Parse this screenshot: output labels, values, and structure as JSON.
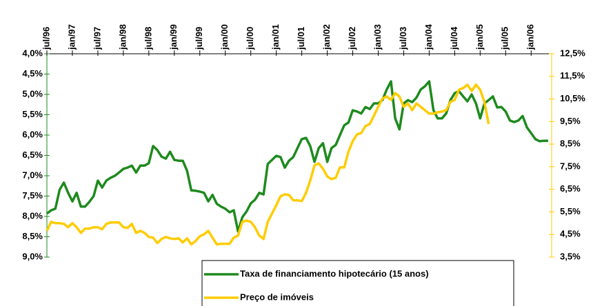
{
  "chart_data": {
    "type": "line",
    "categories": [
      "jul/96",
      null,
      null,
      null,
      null,
      null,
      "jan/97",
      null,
      null,
      null,
      null,
      null,
      "jul/97",
      null,
      null,
      null,
      null,
      null,
      "jan/98",
      null,
      null,
      null,
      null,
      null,
      "jul/98",
      null,
      null,
      null,
      null,
      null,
      "jan/99",
      null,
      null,
      null,
      null,
      null,
      "jul/99",
      null,
      null,
      null,
      null,
      null,
      "jan/00",
      null,
      null,
      null,
      null,
      null,
      "jul/00",
      null,
      null,
      null,
      null,
      null,
      "jan/01",
      null,
      null,
      null,
      null,
      null,
      "jul/01",
      null,
      null,
      null,
      null,
      null,
      "jan/02",
      null,
      null,
      null,
      null,
      null,
      "jul/02",
      null,
      null,
      null,
      null,
      null,
      "jan/03",
      null,
      null,
      null,
      null,
      null,
      "jul/03",
      null,
      null,
      null,
      null,
      null,
      "jan/04",
      null,
      null,
      null,
      null,
      null,
      "jul/04",
      null,
      null,
      null,
      null,
      null,
      "jan/05",
      null,
      null,
      null,
      null,
      null,
      "jul/05",
      null,
      null,
      null,
      null,
      null,
      "jan/06",
      null,
      null,
      null,
      null
    ],
    "series": [
      {
        "name": "Taxa de financiamento hipotecário (15 anos)",
        "color": "#1e8a1e",
        "axis": "y",
        "values": [
          7.93,
          7.85,
          7.81,
          7.34,
          7.17,
          7.42,
          7.63,
          7.42,
          7.76,
          7.76,
          7.64,
          7.5,
          7.12,
          7.29,
          7.12,
          7.05,
          7.0,
          6.92,
          6.83,
          6.8,
          6.75,
          6.92,
          6.75,
          6.75,
          6.69,
          6.27,
          6.37,
          6.53,
          6.58,
          6.41,
          6.61,
          6.63,
          6.63,
          6.88,
          7.36,
          7.37,
          7.39,
          7.42,
          7.63,
          7.47,
          7.69,
          7.76,
          7.81,
          7.9,
          7.85,
          8.37,
          8.02,
          7.88,
          7.68,
          7.59,
          7.42,
          7.46,
          6.71,
          6.61,
          6.51,
          6.54,
          6.8,
          6.63,
          6.54,
          6.32,
          6.1,
          6.07,
          6.27,
          6.66,
          6.32,
          6.2,
          6.66,
          6.32,
          6.24,
          6.0,
          5.76,
          5.69,
          5.39,
          5.42,
          5.47,
          5.31,
          5.36,
          5.22,
          5.22,
          5.14,
          4.88,
          4.68,
          5.59,
          5.86,
          5.22,
          5.14,
          5.19,
          5.08,
          4.88,
          4.8,
          4.68,
          5.39,
          5.59,
          5.59,
          5.47,
          5.14,
          4.97,
          4.92,
          5.05,
          5.17,
          5.0,
          5.22,
          5.59,
          5.22,
          5.14,
          5.05,
          5.32,
          5.31,
          5.42,
          5.64,
          5.68,
          5.64,
          5.53,
          5.81,
          5.95,
          6.1,
          6.15,
          6.14,
          6.14
        ]
      },
      {
        "name": "Preço de imóveis",
        "color": "#ffcc00",
        "axis": "y2",
        "values": [
          4.66,
          5.06,
          5.0,
          5.0,
          4.97,
          4.82,
          5.0,
          4.82,
          4.57,
          4.76,
          4.76,
          4.82,
          4.82,
          4.73,
          4.97,
          5.03,
          5.03,
          5.03,
          4.82,
          4.79,
          4.97,
          4.57,
          4.66,
          4.57,
          4.39,
          4.36,
          4.12,
          4.3,
          4.39,
          4.33,
          4.3,
          4.33,
          4.15,
          4.33,
          4.06,
          4.21,
          4.42,
          4.51,
          4.66,
          4.36,
          4.06,
          4.09,
          4.09,
          4.09,
          4.36,
          4.45,
          5.06,
          5.12,
          5.06,
          4.82,
          4.45,
          4.3,
          5.06,
          5.43,
          5.79,
          6.19,
          6.28,
          6.25,
          6.01,
          6.01,
          5.98,
          6.34,
          6.89,
          7.56,
          7.65,
          7.41,
          7.07,
          6.95,
          7.01,
          7.47,
          7.47,
          8.17,
          8.63,
          8.93,
          8.99,
          9.3,
          9.39,
          9.76,
          10.15,
          10.52,
          10.61,
          10.46,
          10.76,
          10.61,
          10.15,
          10.3,
          10.0,
          10.3,
          10.15,
          10.0,
          9.85,
          9.85,
          9.91,
          9.94,
          10.0,
          10.37,
          10.46,
          10.91,
          10.98,
          11.13,
          10.85,
          11.13,
          10.91,
          10.37,
          9.39,
          null,
          null,
          null,
          null,
          null,
          null,
          null,
          null,
          null,
          null,
          null,
          null,
          null,
          null
        ]
      }
    ],
    "ylim": [
      4,
      9
    ],
    "y_reversed": true,
    "yticks": [
      {
        "value": 4,
        "label": "4,0%"
      },
      {
        "value": 4.5,
        "label": "4,5%"
      },
      {
        "value": 5,
        "label": "5,0%"
      },
      {
        "value": 5.5,
        "label": "5,5%"
      },
      {
        "value": 6,
        "label": "6,0%"
      },
      {
        "value": 6.5,
        "label": "6,5%"
      },
      {
        "value": 7,
        "label": "7,0%"
      },
      {
        "value": 7.5,
        "label": "7,5%"
      },
      {
        "value": 8,
        "label": "8,0%"
      },
      {
        "value": 8.5,
        "label": "8,5%"
      },
      {
        "value": 9,
        "label": "9,0%"
      }
    ],
    "y2lim": [
      3.5,
      12.5
    ],
    "y2ticks": [
      {
        "value": 3.5,
        "label": "3,5%"
      },
      {
        "value": 4.5,
        "label": "4,5%"
      },
      {
        "value": 5.5,
        "label": "5,5%"
      },
      {
        "value": 6.5,
        "label": "6,5%"
      },
      {
        "value": 7.5,
        "label": "7,5%"
      },
      {
        "value": 8.5,
        "label": "8,5%"
      },
      {
        "value": 9.5,
        "label": "9,5%"
      },
      {
        "value": 10.5,
        "label": "10,5%"
      },
      {
        "value": 11.5,
        "label": "11,5%"
      },
      {
        "value": 12.5,
        "label": "12,5%"
      }
    ],
    "grid": false,
    "legend": "bottom"
  }
}
